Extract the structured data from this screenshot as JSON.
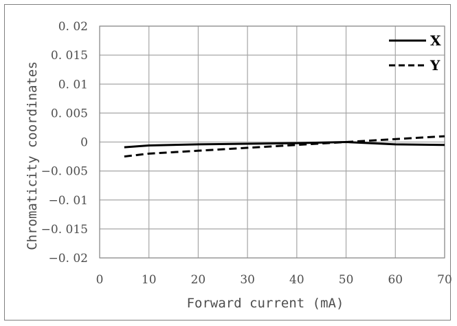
{
  "chart_data": {
    "type": "line",
    "title": "",
    "xlabel": "Forward current (mA)",
    "ylabel": "Chromaticity coordinates",
    "xlim": [
      0,
      70
    ],
    "ylim": [
      -0.02,
      0.02
    ],
    "x_ticks": [
      0,
      10,
      20,
      30,
      40,
      50,
      60,
      70
    ],
    "x_tick_labels": [
      "0",
      "10",
      "20",
      "30",
      "40",
      "50",
      "60",
      "70"
    ],
    "y_ticks": [
      0.02,
      0.015,
      0.01,
      0.005,
      0,
      -0.005,
      -0.01,
      -0.015,
      -0.02
    ],
    "y_tick_labels": [
      "0. 02",
      "0. 015",
      "0. 01",
      "0. 005",
      "0",
      "−0. 005",
      "−0. 01",
      "−0. 015",
      "−0. 02"
    ],
    "grid": true,
    "legend_position": "top-right",
    "series": [
      {
        "name": "X",
        "style": "solid",
        "color": "#000000",
        "x": [
          5,
          10,
          20,
          30,
          40,
          50,
          60,
          70
        ],
        "y": [
          -0.0009,
          -0.0006,
          -0.0004,
          -0.0003,
          -0.0002,
          0.0,
          -0.0004,
          -0.0005
        ]
      },
      {
        "name": "Y",
        "style": "dashed",
        "color": "#000000",
        "x": [
          5,
          10,
          20,
          30,
          40,
          50,
          60,
          70
        ],
        "y": [
          -0.0025,
          -0.002,
          -0.0015,
          -0.001,
          -0.0005,
          0.0,
          0.0005,
          0.001
        ]
      }
    ]
  }
}
